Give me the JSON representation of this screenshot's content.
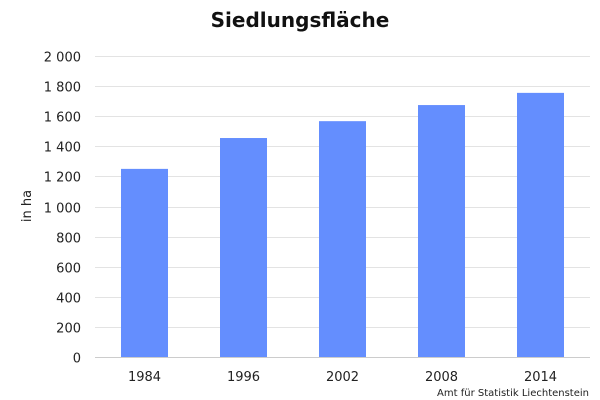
{
  "chart_data": {
    "type": "bar",
    "title": "Siedlungsfläche",
    "xlabel": "",
    "ylabel": "in ha",
    "categories": [
      "1984",
      "1996",
      "2002",
      "2008",
      "2014"
    ],
    "values": [
      1250,
      1455,
      1567,
      1674,
      1755
    ],
    "ylim": [
      0,
      2000
    ],
    "yticks": [
      0,
      200,
      400,
      600,
      800,
      1000,
      1200,
      1400,
      1600,
      1800,
      2000
    ],
    "ytick_labels": [
      "0",
      "200",
      "400",
      "600",
      "800",
      "1 000",
      "1 200",
      "1 400",
      "1 600",
      "1 800",
      "2 000"
    ],
    "grid": true,
    "bar_color": "#648efe",
    "source": "Amt für Statistik Liechtenstein"
  }
}
